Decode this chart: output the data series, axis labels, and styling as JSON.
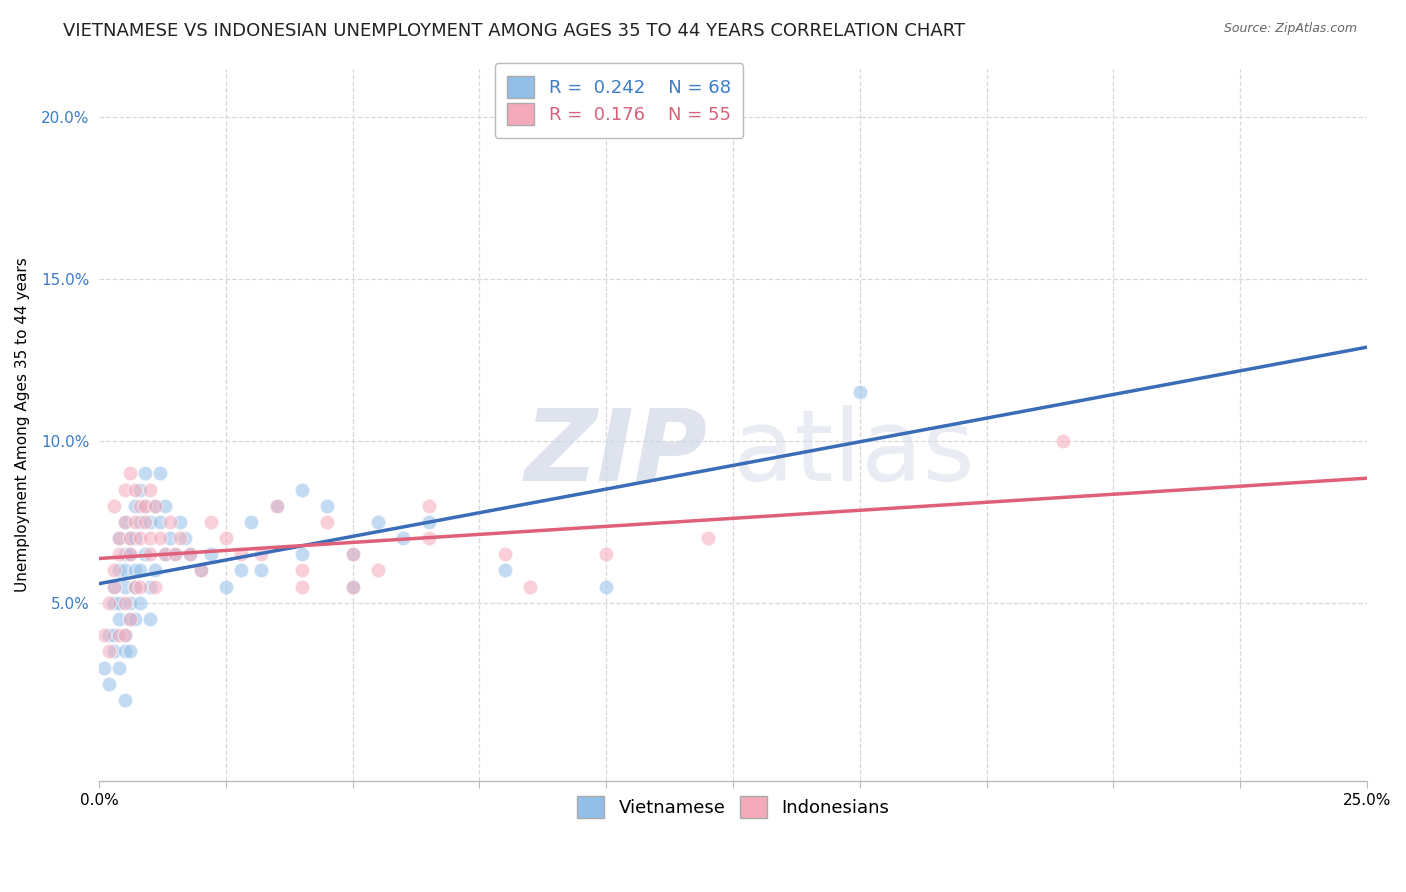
{
  "title": "VIETNAMESE VS INDONESIAN UNEMPLOYMENT AMONG AGES 35 TO 44 YEARS CORRELATION CHART",
  "source": "Source: ZipAtlas.com",
  "ylabel": "Unemployment Among Ages 35 to 44 years",
  "xlim": [
    0.0,
    0.25
  ],
  "ylim": [
    -0.005,
    0.215
  ],
  "yticks": [
    0.0,
    0.05,
    0.1,
    0.15,
    0.2
  ],
  "ytick_labels": [
    "",
    "5.0%",
    "10.0%",
    "15.0%",
    "20.0%"
  ],
  "background_color": "#ffffff",
  "grid_color": "#d8d8d8",
  "legend_R_vietnamese": "0.242",
  "legend_N_vietnamese": "68",
  "legend_R_indonesian": "0.176",
  "legend_N_indonesian": "55",
  "vietnamese_color": "#92bfe8",
  "indonesian_color": "#f5aabb",
  "trend_vietnamese_color": "#3b6cb7",
  "trend_indonesian_color": "#e0607a",
  "watermark_zip": "ZIP",
  "watermark_atlas": "atlas",
  "vietnamese_x": [
    0.001,
    0.002,
    0.002,
    0.003,
    0.003,
    0.003,
    0.003,
    0.004,
    0.004,
    0.004,
    0.004,
    0.004,
    0.005,
    0.005,
    0.005,
    0.005,
    0.005,
    0.005,
    0.005,
    0.006,
    0.006,
    0.006,
    0.006,
    0.006,
    0.007,
    0.007,
    0.007,
    0.007,
    0.007,
    0.008,
    0.008,
    0.008,
    0.008,
    0.009,
    0.009,
    0.009,
    0.01,
    0.01,
    0.01,
    0.011,
    0.011,
    0.012,
    0.012,
    0.013,
    0.013,
    0.014,
    0.015,
    0.016,
    0.017,
    0.018,
    0.02,
    0.022,
    0.025,
    0.028,
    0.032,
    0.04,
    0.05,
    0.06,
    0.08,
    0.1,
    0.03,
    0.035,
    0.04,
    0.045,
    0.05,
    0.055,
    0.065,
    0.15
  ],
  "vietnamese_y": [
    0.03,
    0.025,
    0.04,
    0.035,
    0.05,
    0.055,
    0.04,
    0.03,
    0.06,
    0.07,
    0.045,
    0.05,
    0.02,
    0.035,
    0.06,
    0.065,
    0.075,
    0.04,
    0.055,
    0.035,
    0.07,
    0.065,
    0.05,
    0.045,
    0.08,
    0.055,
    0.06,
    0.07,
    0.045,
    0.075,
    0.085,
    0.06,
    0.05,
    0.08,
    0.065,
    0.09,
    0.075,
    0.055,
    0.045,
    0.08,
    0.06,
    0.075,
    0.09,
    0.065,
    0.08,
    0.07,
    0.065,
    0.075,
    0.07,
    0.065,
    0.06,
    0.065,
    0.055,
    0.06,
    0.06,
    0.065,
    0.055,
    0.07,
    0.06,
    0.055,
    0.075,
    0.08,
    0.085,
    0.08,
    0.065,
    0.075,
    0.075,
    0.115
  ],
  "indonesian_x": [
    0.001,
    0.002,
    0.002,
    0.003,
    0.003,
    0.003,
    0.004,
    0.004,
    0.004,
    0.005,
    0.005,
    0.005,
    0.005,
    0.006,
    0.006,
    0.006,
    0.006,
    0.007,
    0.007,
    0.007,
    0.008,
    0.008,
    0.008,
    0.009,
    0.009,
    0.01,
    0.01,
    0.01,
    0.011,
    0.011,
    0.012,
    0.013,
    0.014,
    0.015,
    0.016,
    0.018,
    0.02,
    0.022,
    0.025,
    0.028,
    0.032,
    0.04,
    0.05,
    0.065,
    0.08,
    0.1,
    0.12,
    0.035,
    0.04,
    0.045,
    0.05,
    0.055,
    0.065,
    0.085,
    0.19
  ],
  "indonesian_y": [
    0.04,
    0.05,
    0.035,
    0.06,
    0.055,
    0.08,
    0.065,
    0.07,
    0.04,
    0.075,
    0.085,
    0.05,
    0.04,
    0.09,
    0.065,
    0.045,
    0.07,
    0.075,
    0.055,
    0.085,
    0.07,
    0.08,
    0.055,
    0.075,
    0.08,
    0.085,
    0.065,
    0.07,
    0.08,
    0.055,
    0.07,
    0.065,
    0.075,
    0.065,
    0.07,
    0.065,
    0.06,
    0.075,
    0.07,
    0.065,
    0.065,
    0.055,
    0.065,
    0.07,
    0.065,
    0.065,
    0.07,
    0.08,
    0.06,
    0.075,
    0.055,
    0.06,
    0.08,
    0.055,
    0.1
  ],
  "title_fontsize": 13,
  "axis_label_fontsize": 11,
  "tick_fontsize": 11,
  "legend_fontsize": 13,
  "scatter_size": 110,
  "scatter_alpha": 0.55,
  "trend_linewidth": 2.5
}
